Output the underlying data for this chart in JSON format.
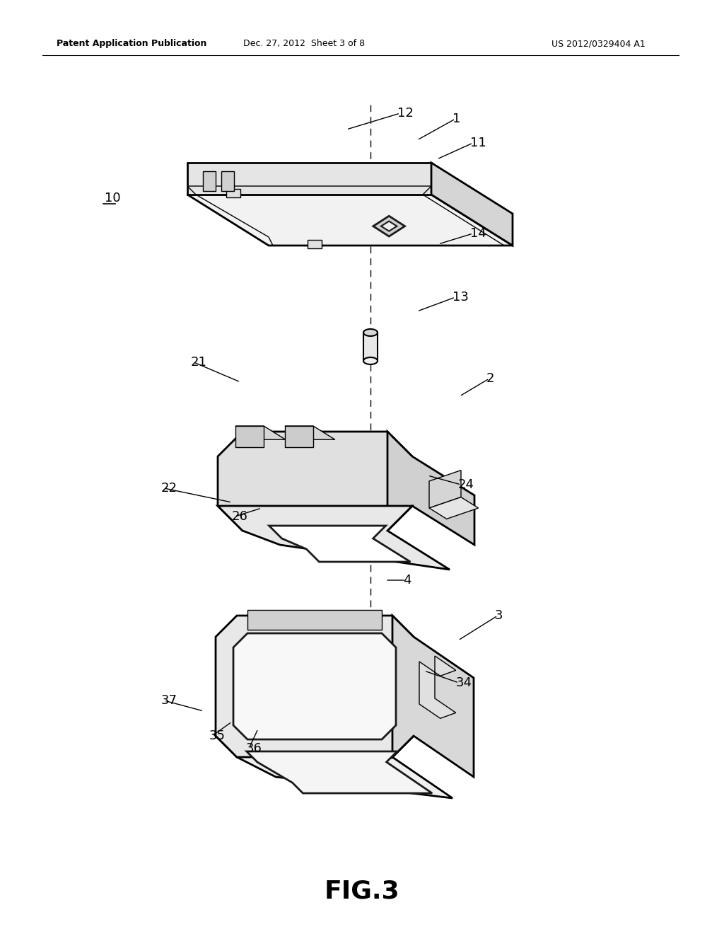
{
  "bg_color": "#ffffff",
  "line_color": "#000000",
  "header_left": "Patent Application Publication",
  "header_mid": "Dec. 27, 2012  Sheet 3 of 8",
  "header_right": "US 2012/0329404 A1",
  "fig_label": "FIG.3",
  "dpi": 100,
  "figw": 10.24,
  "figh": 13.2
}
